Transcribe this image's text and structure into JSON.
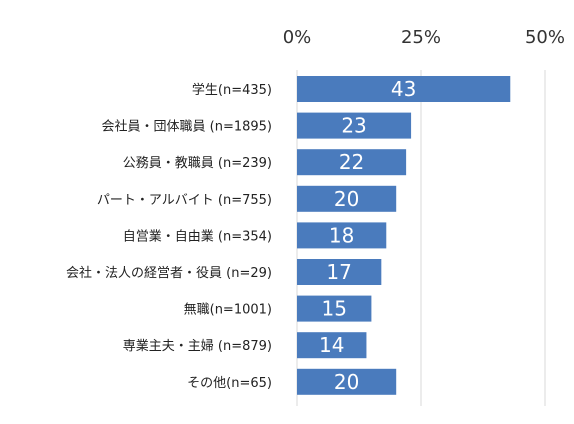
{
  "chart_data": {
    "type": "bar",
    "orientation": "horizontal",
    "title": "",
    "xlabel": "",
    "ylabel": "",
    "xlim": [
      0,
      50
    ],
    "x_ticks": [
      "0%",
      "25%",
      "50%"
    ],
    "x_tick_values": [
      0,
      25,
      50
    ],
    "tick_position": "top",
    "grid": "vertical",
    "legend": "none",
    "categories": [
      "学生(n=435)",
      "会社員・団体職員 (n=1895)",
      "公務員・教職員 (n=239)",
      "パート・アルバイト (n=755)",
      "自営業・自由業 (n=354)",
      "会社・法人の経営者・役員 (n=29)",
      "無職(n=1001)",
      "専業主夫・主婦 (n=879)",
      "その他(n=65)"
    ],
    "values": [
      43,
      23,
      22,
      20,
      18,
      17,
      15,
      14,
      20
    ],
    "data_labels": [
      "43",
      "23",
      "22",
      "20",
      "18",
      "17",
      "15",
      "14",
      "20"
    ],
    "bar_color": "#4a7bbd",
    "grid_color": "#d9d9d9"
  }
}
